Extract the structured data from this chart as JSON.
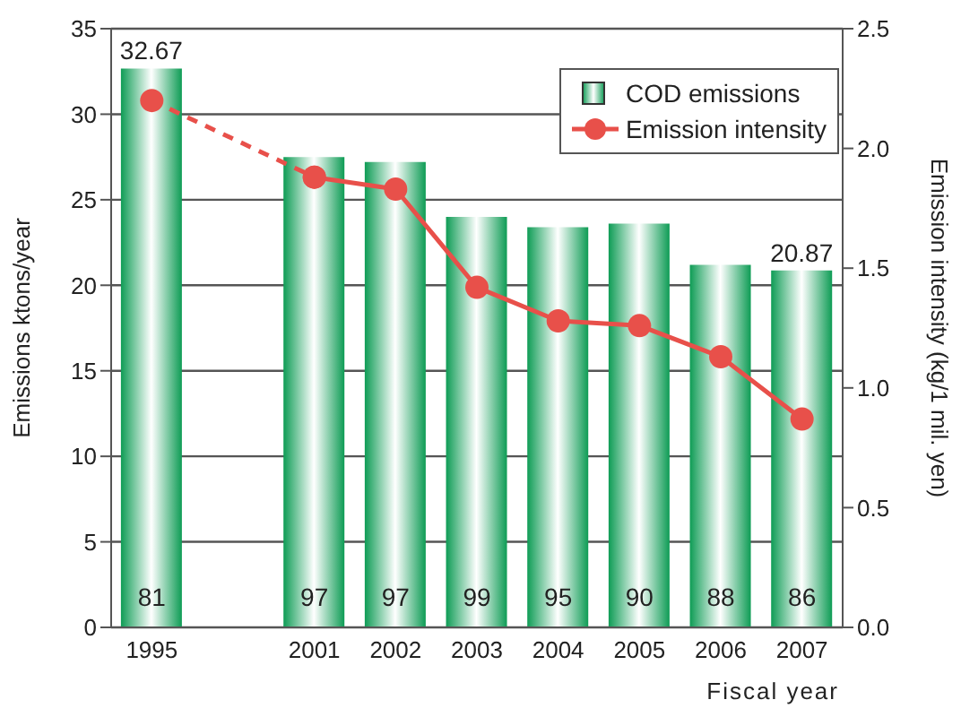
{
  "chart_data": {
    "type": "bar",
    "categories": [
      "1995",
      null,
      "2001",
      "2002",
      "2003",
      "2004",
      "2005",
      "2006",
      "2007"
    ],
    "series": [
      {
        "name": "COD emissions",
        "color": "#0e9c55",
        "values": [
          32.67,
          null,
          27.5,
          27.2,
          24.0,
          23.4,
          23.6,
          21.2,
          20.87
        ],
        "value_labels": [
          "32.67",
          null,
          null,
          null,
          null,
          null,
          null,
          null,
          "20.87"
        ]
      },
      {
        "name": "Emission intensity",
        "type": "line",
        "axis": "y2",
        "color": "#e8504a",
        "line_style": "solid",
        "values": [
          null,
          null,
          1.88,
          1.83,
          1.42,
          1.28,
          1.26,
          1.13,
          0.87
        ]
      },
      {
        "type": "line",
        "axis": "y2",
        "color": "#e8504a",
        "line_style": "dashed",
        "values": [
          2.2,
          null,
          1.88,
          null,
          null,
          null,
          null,
          null,
          null
        ]
      }
    ],
    "xlabel": "Fiscal year",
    "ylabel": "Emissions ktons/year",
    "y2label": "Emission intensity (kg/1 mil. yen)",
    "ylim": [
      0,
      35
    ],
    "yticks": [
      0,
      5,
      10,
      15,
      20,
      25,
      30,
      35
    ],
    "y2lim": [
      0,
      2.5
    ],
    "y2ticks": [
      {
        "value": 0,
        "label": "0.0"
      },
      0.5,
      {
        "value": 1,
        "label": "1.0"
      },
      1.5,
      {
        "value": 2,
        "label": "2.0"
      },
      2.5
    ],
    "annotations": [
      "81",
      "97",
      "97",
      "99",
      "95",
      "90",
      "88",
      "86"
    ],
    "grid": "y",
    "legend": "top right",
    "marker": "circle"
  }
}
